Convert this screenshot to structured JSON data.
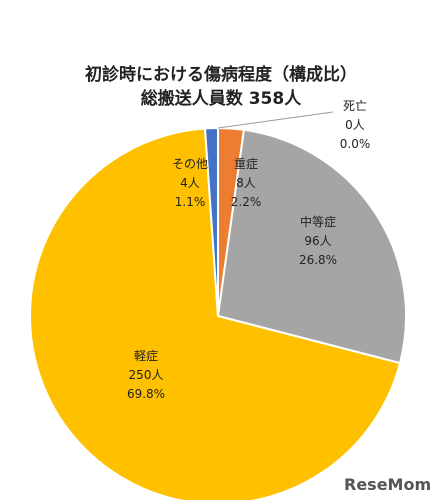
{
  "chart_data": {
    "type": "pie",
    "title": "初診時における傷病程度（構成比）",
    "subtitle": "総搬送人員数 358人",
    "total": 358,
    "slices": [
      {
        "label": "死亡",
        "count_text": "0人",
        "pct_text": "0.0%",
        "count": 0,
        "percent": 0.0,
        "color": "#4472C4"
      },
      {
        "label": "重症",
        "count_text": "8人",
        "pct_text": "2.2%",
        "count": 8,
        "percent": 2.2,
        "color": "#ED7D31"
      },
      {
        "label": "中等症",
        "count_text": "96人",
        "pct_text": "26.8%",
        "count": 96,
        "percent": 26.8,
        "color": "#A5A5A5"
      },
      {
        "label": "軽症",
        "count_text": "250人",
        "pct_text": "69.8%",
        "count": 250,
        "percent": 69.8,
        "color": "#FFC000"
      },
      {
        "label": "その他",
        "count_text": "4人",
        "pct_text": "1.1%",
        "count": 4,
        "percent": 1.1,
        "color": "#4472C4"
      }
    ]
  },
  "watermark": "ReseMom"
}
